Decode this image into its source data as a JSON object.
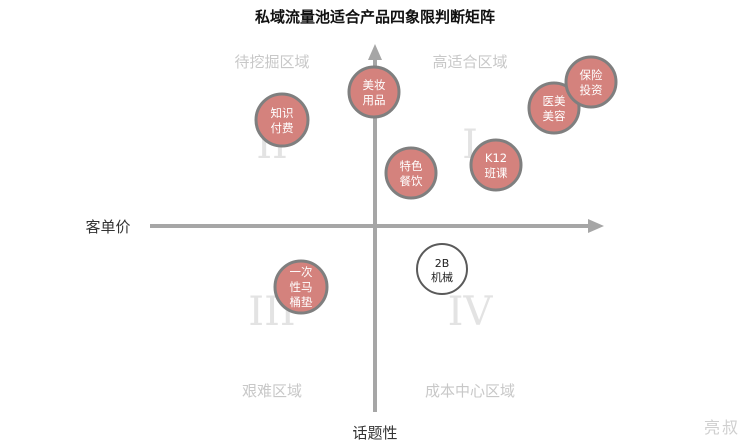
{
  "title": "私域流量池适合产品四象限判断矩阵",
  "axes": {
    "x_label": "客单价",
    "y_label": "话题性"
  },
  "quadrants": {
    "q1": {
      "label": "高适合区域",
      "numeral": "I"
    },
    "q2": {
      "label": "待挖掘区域",
      "numeral": "II"
    },
    "q3": {
      "label": "艰难区域",
      "numeral": "III"
    },
    "q4": {
      "label": "成本中心区域",
      "numeral": "IV"
    }
  },
  "bubbles": [
    {
      "lines": [
        "美妆",
        "用品"
      ],
      "style": "filled"
    },
    {
      "lines": [
        "知识",
        "付费"
      ],
      "style": "filled"
    },
    {
      "lines": [
        "特色",
        "餐饮"
      ],
      "style": "filled"
    },
    {
      "lines": [
        "K12",
        "班课"
      ],
      "style": "filled"
    },
    {
      "lines": [
        "医美",
        "美容"
      ],
      "style": "filled"
    },
    {
      "lines": [
        "保险",
        "投资"
      ],
      "style": "filled"
    },
    {
      "lines": [
        "一次",
        "性马",
        "桶垫"
      ],
      "style": "filled"
    },
    {
      "lines": [
        "2B",
        "机械"
      ],
      "style": "outline"
    }
  ],
  "watermark": "亮叔",
  "colors": {
    "bubble_fill": "#d4827d",
    "bubble_stroke": "#7f7f7f",
    "axis": "#a6a6a6"
  }
}
